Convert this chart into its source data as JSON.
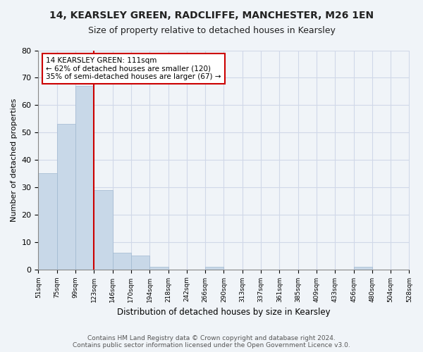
{
  "title": "14, KEARSLEY GREEN, RADCLIFFE, MANCHESTER, M26 1EN",
  "subtitle": "Size of property relative to detached houses in Kearsley",
  "xlabel": "Distribution of detached houses by size in Kearsley",
  "ylabel": "Number of detached properties",
  "bar_values": [
    35,
    53,
    67,
    29,
    6,
    5,
    1,
    0,
    0,
    1,
    0,
    0,
    0,
    0,
    0,
    0,
    0,
    1,
    0,
    0
  ],
  "bin_labels": [
    "51sqm",
    "75sqm",
    "99sqm",
    "123sqm",
    "146sqm",
    "170sqm",
    "194sqm",
    "218sqm",
    "242sqm",
    "266sqm",
    "290sqm",
    "313sqm",
    "337sqm",
    "361sqm",
    "385sqm",
    "409sqm",
    "433sqm",
    "456sqm",
    "480sqm",
    "504sqm",
    "528sqm"
  ],
  "bar_color": "#c8d8e8",
  "bar_edge_color": "#a0b8d0",
  "grid_color": "#d0d8e8",
  "vline_x": 2.5,
  "vline_color": "#cc0000",
  "annotation_text": "14 KEARSLEY GREEN: 111sqm\n← 62% of detached houses are smaller (120)\n35% of semi-detached houses are larger (67) →",
  "annotation_box_color": "#cc0000",
  "ylim": [
    0,
    80
  ],
  "yticks": [
    0,
    10,
    20,
    30,
    40,
    50,
    60,
    70,
    80
  ],
  "footnote": "Contains HM Land Registry data © Crown copyright and database right 2024.\nContains public sector information licensed under the Open Government Licence v3.0.",
  "background_color": "#f0f4f8"
}
